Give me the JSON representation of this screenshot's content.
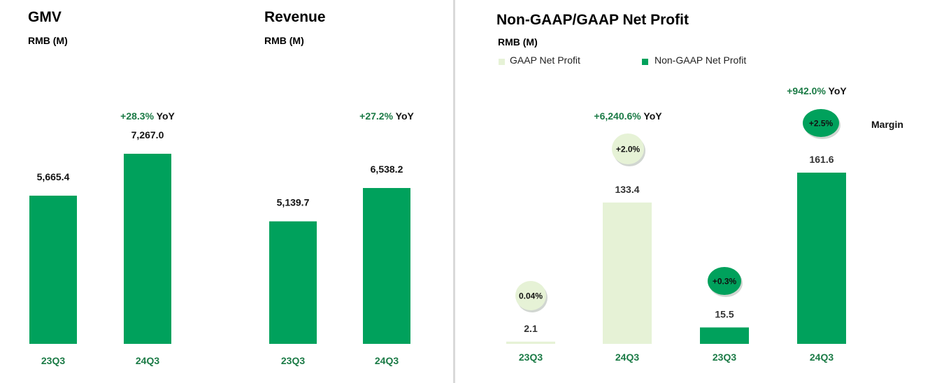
{
  "colors": {
    "title": "#1a7a45",
    "bar_dark": "#00a15c",
    "bar_light": "#e6f2d6",
    "yoy_green": "#1a7a45",
    "label_dark": "#111111",
    "label_grey": "#333333",
    "divider": "#d9d9d9"
  },
  "panels": {
    "gmv": {
      "title": "GMV",
      "unit": "RMB (M)"
    },
    "revenue": {
      "title": "Revenue",
      "unit": "RMB (M)"
    },
    "net_profit": {
      "title": "Non-GAAP/GAAP Net Profit",
      "unit": "RMB (M)",
      "legend": [
        "GAAP Net Profit",
        "Non-GAAP Net Profit"
      ],
      "margin_label": "Margin"
    }
  },
  "chart_data": [
    {
      "type": "bar",
      "title": "GMV",
      "ylabel": "RMB (M)",
      "categories": [
        "23Q3",
        "24Q3"
      ],
      "values": [
        5665.4,
        7267.0
      ],
      "value_labels": [
        "5,665.4",
        "7,267.0"
      ],
      "yoy": {
        "change": "+28.3%",
        "suffix": "YoY"
      }
    },
    {
      "type": "bar",
      "title": "Revenue",
      "ylabel": "RMB (M)",
      "categories": [
        "23Q3",
        "24Q3"
      ],
      "values": [
        5139.7,
        6538.2
      ],
      "value_labels": [
        "5,139.7",
        "6,538.2"
      ],
      "yoy": {
        "change": "+27.2%",
        "suffix": "YoY"
      }
    },
    {
      "type": "bar",
      "title": "Non-GAAP/GAAP Net Profit",
      "ylabel": "RMB (M)",
      "categories": [
        "23Q3",
        "24Q3"
      ],
      "series": [
        {
          "name": "GAAP Net Profit",
          "values": [
            2.1,
            133.4
          ],
          "value_labels": [
            "2.1",
            "133.4"
          ],
          "margins": [
            "0.04%",
            "+2.0%"
          ],
          "yoy": {
            "change": "+6,240.6%",
            "suffix": "YoY"
          }
        },
        {
          "name": "Non-GAAP Net Profit",
          "values": [
            15.5,
            161.6
          ],
          "value_labels": [
            "15.5",
            "161.6"
          ],
          "margins": [
            "+0.3%",
            "+2.5%"
          ],
          "yoy": {
            "change": "+942.0%",
            "suffix": "YoY"
          }
        }
      ]
    }
  ]
}
